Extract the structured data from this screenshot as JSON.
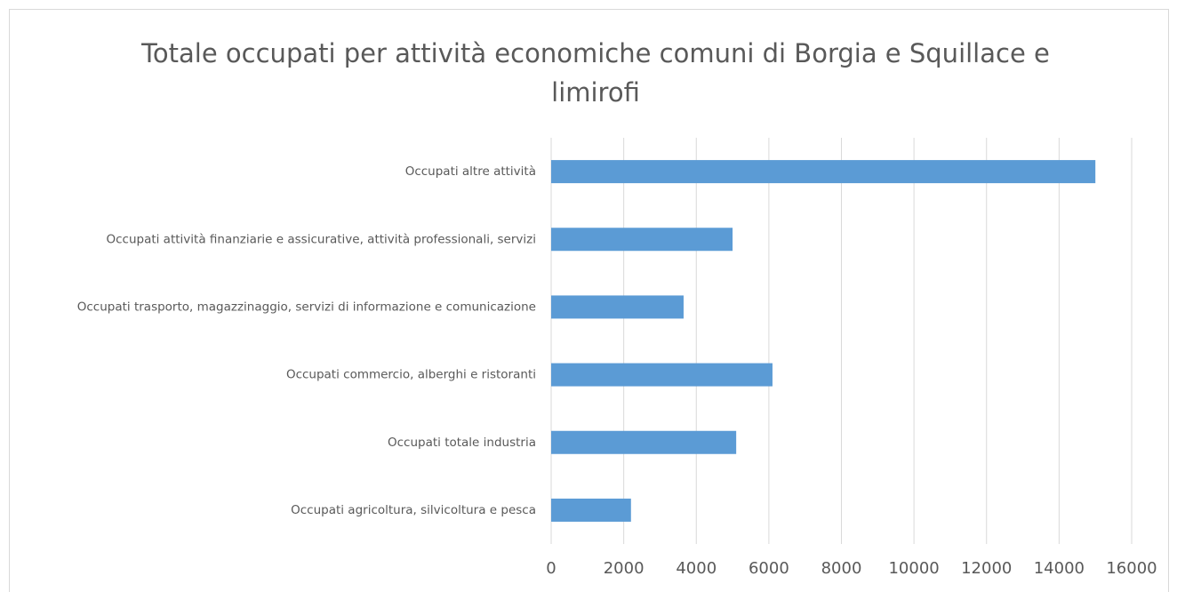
{
  "chart_data": {
    "type": "bar",
    "orientation": "horizontal",
    "title": "Totale occupati per attività economiche comuni di Borgia e Squillace e limirofi",
    "categories": [
      "Occupati altre attività",
      "Occupati attività finanziarie e assicurative, attività professionali, servizi",
      "Occupati trasporto, magazzinaggio, servizi di informazione e comunicazione",
      "Occupati commercio, alberghi e ristoranti",
      "Occupati totale industria",
      "Occupati agricoltura, silvicoltura e pesca"
    ],
    "values": [
      15000,
      5000,
      3650,
      6100,
      5100,
      2200
    ],
    "color": "#5b9bd5",
    "xlim": [
      0,
      16000
    ],
    "xticks": [
      0,
      2000,
      4000,
      6000,
      8000,
      10000,
      12000,
      14000,
      16000
    ],
    "grid": true
  }
}
